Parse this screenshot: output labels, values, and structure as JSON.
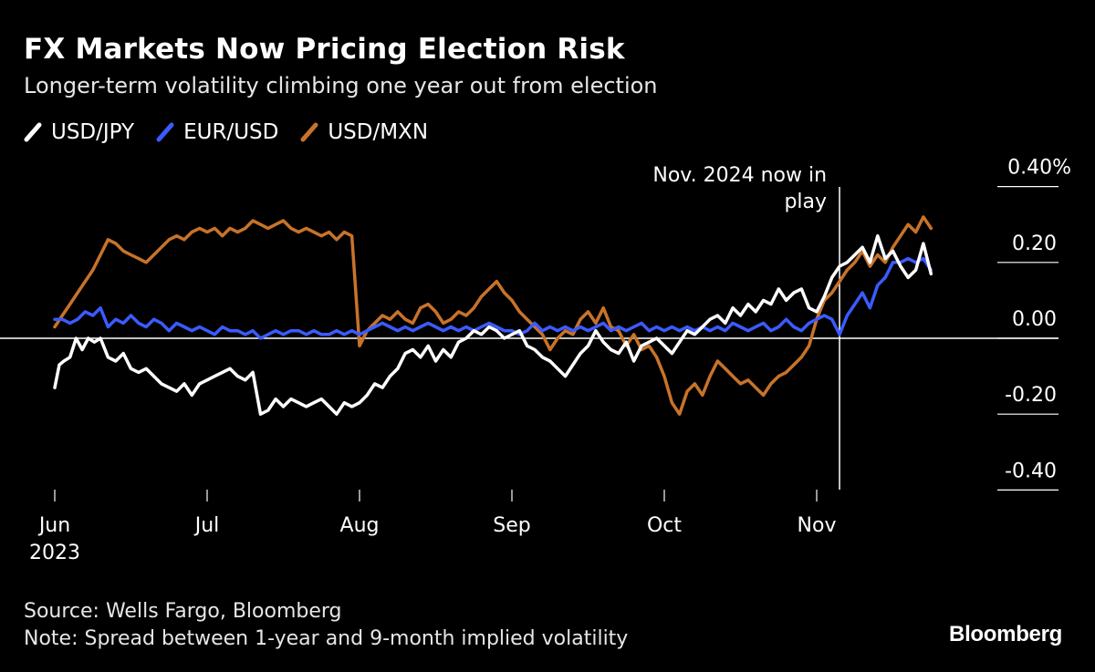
{
  "header": {
    "title": "FX Markets Now Pricing Election Risk",
    "subtitle": "Longer-term volatility climbing one year out from election"
  },
  "footer": {
    "source": "Source: Wells Fargo, Bloomberg",
    "note": "Note: Spread between 1-year and 9-month implied volatility",
    "brand": "Bloomberg"
  },
  "chart_data": {
    "type": "line",
    "title": "FX Markets Now Pricing Election Risk",
    "subtitle": "Longer-term volatility climbing one year out from election",
    "xlabel": "",
    "ylabel": "",
    "xlim": [
      0,
      5.9
    ],
    "ylim": [
      -0.42,
      0.43
    ],
    "x_ticks": [
      {
        "x": 0,
        "label": "Jun",
        "sublabel": "2023"
      },
      {
        "x": 1,
        "label": "Jul"
      },
      {
        "x": 2,
        "label": "Aug"
      },
      {
        "x": 3,
        "label": "Sep"
      },
      {
        "x": 4,
        "label": "Oct"
      },
      {
        "x": 5,
        "label": "Nov"
      }
    ],
    "y_ticks": [
      {
        "value": 0.4,
        "label": "0.40%"
      },
      {
        "value": 0.2,
        "label": "0.20"
      },
      {
        "value": 0.0,
        "label": "0.00"
      },
      {
        "value": -0.2,
        "label": "-0.20"
      },
      {
        "value": -0.4,
        "label": "-0.40"
      }
    ],
    "legend_position": "top-left",
    "annotation": {
      "x": 5.15,
      "text_lines": [
        "Nov. 2024 now in",
        "play"
      ]
    },
    "series": [
      {
        "name": "USD/JPY",
        "color": "#ffffff",
        "x": [
          0,
          0.03,
          0.06,
          0.1,
          0.14,
          0.18,
          0.22,
          0.26,
          0.3,
          0.35,
          0.4,
          0.45,
          0.5,
          0.55,
          0.6,
          0.65,
          0.7,
          0.75,
          0.8,
          0.85,
          0.9,
          0.95,
          1.0,
          1.05,
          1.1,
          1.15,
          1.2,
          1.25,
          1.3,
          1.35,
          1.4,
          1.45,
          1.5,
          1.55,
          1.6,
          1.65,
          1.7,
          1.75,
          1.8,
          1.85,
          1.9,
          1.95,
          2.0,
          2.05,
          2.1,
          2.15,
          2.2,
          2.25,
          2.3,
          2.35,
          2.4,
          2.45,
          2.5,
          2.55,
          2.6,
          2.65,
          2.7,
          2.75,
          2.8,
          2.85,
          2.9,
          2.95,
          3.0,
          3.05,
          3.1,
          3.15,
          3.2,
          3.25,
          3.3,
          3.35,
          3.4,
          3.45,
          3.5,
          3.55,
          3.6,
          3.65,
          3.7,
          3.75,
          3.8,
          3.85,
          3.9,
          3.95,
          4.0,
          4.05,
          4.1,
          4.15,
          4.2,
          4.25,
          4.3,
          4.35,
          4.4,
          4.45,
          4.5,
          4.55,
          4.6,
          4.65,
          4.7,
          4.75,
          4.8,
          4.85,
          4.9,
          4.95,
          5.0,
          5.05,
          5.1,
          5.15,
          5.2,
          5.25,
          5.3,
          5.35,
          5.4,
          5.45,
          5.5,
          5.55,
          5.6,
          5.65,
          5.7,
          5.75
        ],
        "values": [
          -0.13,
          -0.07,
          -0.06,
          -0.05,
          0.0,
          -0.03,
          0.0,
          -0.01,
          0.0,
          -0.05,
          -0.06,
          -0.04,
          -0.08,
          -0.09,
          -0.08,
          -0.1,
          -0.12,
          -0.13,
          -0.14,
          -0.12,
          -0.15,
          -0.12,
          -0.11,
          -0.1,
          -0.09,
          -0.08,
          -0.1,
          -0.11,
          -0.09,
          -0.2,
          -0.19,
          -0.16,
          -0.18,
          -0.16,
          -0.17,
          -0.18,
          -0.17,
          -0.16,
          -0.18,
          -0.2,
          -0.17,
          -0.18,
          -0.17,
          -0.15,
          -0.12,
          -0.13,
          -0.1,
          -0.08,
          -0.04,
          -0.03,
          -0.05,
          -0.02,
          -0.06,
          -0.03,
          -0.05,
          -0.01,
          0.0,
          0.02,
          0.01,
          0.03,
          0.02,
          0.0,
          0.01,
          0.02,
          -0.02,
          -0.03,
          -0.05,
          -0.06,
          -0.08,
          -0.1,
          -0.07,
          -0.04,
          -0.02,
          0.02,
          -0.01,
          -0.03,
          -0.04,
          -0.01,
          -0.06,
          -0.02,
          -0.01,
          0.0,
          -0.02,
          -0.04,
          -0.01,
          0.02,
          0.01,
          0.03,
          0.05,
          0.06,
          0.04,
          0.08,
          0.06,
          0.09,
          0.07,
          0.1,
          0.09,
          0.13,
          0.1,
          0.12,
          0.13,
          0.08,
          0.07,
          0.11,
          0.16,
          0.19,
          0.2,
          0.22,
          0.24,
          0.2,
          0.27,
          0.21,
          0.23,
          0.19,
          0.16,
          0.18,
          0.25,
          0.17
        ]
      },
      {
        "name": "EUR/USD",
        "color": "#3b5bff",
        "x": [
          0,
          0.05,
          0.1,
          0.15,
          0.2,
          0.25,
          0.3,
          0.35,
          0.4,
          0.45,
          0.5,
          0.55,
          0.6,
          0.65,
          0.7,
          0.75,
          0.8,
          0.85,
          0.9,
          0.95,
          1.0,
          1.05,
          1.1,
          1.15,
          1.2,
          1.25,
          1.3,
          1.35,
          1.4,
          1.45,
          1.5,
          1.55,
          1.6,
          1.65,
          1.7,
          1.75,
          1.8,
          1.85,
          1.9,
          1.95,
          2.0,
          2.05,
          2.1,
          2.15,
          2.2,
          2.25,
          2.3,
          2.35,
          2.4,
          2.45,
          2.5,
          2.55,
          2.6,
          2.65,
          2.7,
          2.75,
          2.8,
          2.85,
          2.9,
          2.95,
          3.0,
          3.05,
          3.1,
          3.15,
          3.2,
          3.25,
          3.3,
          3.35,
          3.4,
          3.45,
          3.5,
          3.55,
          3.6,
          3.65,
          3.7,
          3.75,
          3.8,
          3.85,
          3.9,
          3.95,
          4.0,
          4.05,
          4.1,
          4.15,
          4.2,
          4.25,
          4.3,
          4.35,
          4.4,
          4.45,
          4.5,
          4.55,
          4.6,
          4.65,
          4.7,
          4.75,
          4.8,
          4.85,
          4.9,
          4.95,
          5.0,
          5.05,
          5.1,
          5.15,
          5.2,
          5.25,
          5.3,
          5.35,
          5.4,
          5.45,
          5.5,
          5.55,
          5.6,
          5.65,
          5.7,
          5.75
        ],
        "values": [
          0.05,
          0.05,
          0.04,
          0.05,
          0.07,
          0.06,
          0.08,
          0.03,
          0.05,
          0.04,
          0.06,
          0.04,
          0.03,
          0.05,
          0.04,
          0.02,
          0.04,
          0.03,
          0.02,
          0.03,
          0.02,
          0.01,
          0.03,
          0.02,
          0.02,
          0.01,
          0.02,
          0.0,
          0.01,
          0.02,
          0.01,
          0.02,
          0.02,
          0.01,
          0.02,
          0.01,
          0.01,
          0.02,
          0.01,
          0.02,
          0.01,
          0.02,
          0.03,
          0.04,
          0.03,
          0.02,
          0.03,
          0.02,
          0.03,
          0.04,
          0.03,
          0.02,
          0.03,
          0.02,
          0.03,
          0.02,
          0.03,
          0.04,
          0.03,
          0.02,
          0.02,
          0.01,
          0.02,
          0.04,
          0.02,
          0.03,
          0.02,
          0.03,
          0.02,
          0.03,
          0.02,
          0.03,
          0.04,
          0.02,
          0.03,
          0.02,
          0.03,
          0.04,
          0.02,
          0.03,
          0.02,
          0.03,
          0.02,
          0.03,
          0.02,
          0.03,
          0.02,
          0.03,
          0.02,
          0.04,
          0.03,
          0.02,
          0.03,
          0.04,
          0.02,
          0.03,
          0.05,
          0.03,
          0.02,
          0.04,
          0.05,
          0.06,
          0.05,
          0.01,
          0.06,
          0.09,
          0.12,
          0.08,
          0.14,
          0.16,
          0.2,
          0.2,
          0.21,
          0.2,
          0.21,
          0.18
        ]
      },
      {
        "name": "USD/MXN",
        "color": "#c8732a",
        "x": [
          0,
          0.05,
          0.1,
          0.15,
          0.2,
          0.25,
          0.3,
          0.35,
          0.4,
          0.45,
          0.5,
          0.55,
          0.6,
          0.65,
          0.7,
          0.75,
          0.8,
          0.85,
          0.9,
          0.95,
          1.0,
          1.05,
          1.1,
          1.15,
          1.2,
          1.25,
          1.3,
          1.35,
          1.4,
          1.45,
          1.5,
          1.55,
          1.6,
          1.65,
          1.7,
          1.75,
          1.8,
          1.85,
          1.9,
          1.95,
          2.0,
          2.05,
          2.1,
          2.15,
          2.2,
          2.25,
          2.3,
          2.35,
          2.4,
          2.45,
          2.5,
          2.55,
          2.6,
          2.65,
          2.7,
          2.75,
          2.8,
          2.85,
          2.9,
          2.95,
          3.0,
          3.05,
          3.1,
          3.15,
          3.2,
          3.25,
          3.3,
          3.35,
          3.4,
          3.45,
          3.5,
          3.55,
          3.6,
          3.65,
          3.7,
          3.75,
          3.8,
          3.85,
          3.9,
          3.95,
          4.0,
          4.05,
          4.1,
          4.15,
          4.2,
          4.25,
          4.3,
          4.35,
          4.4,
          4.45,
          4.5,
          4.55,
          4.6,
          4.65,
          4.7,
          4.75,
          4.8,
          4.85,
          4.9,
          4.95,
          5.0,
          5.05,
          5.1,
          5.15,
          5.2,
          5.25,
          5.3,
          5.35,
          5.4,
          5.45,
          5.5,
          5.55,
          5.6,
          5.65,
          5.7,
          5.75
        ],
        "values": [
          0.03,
          0.06,
          0.09,
          0.12,
          0.15,
          0.18,
          0.22,
          0.26,
          0.25,
          0.23,
          0.22,
          0.21,
          0.2,
          0.22,
          0.24,
          0.26,
          0.27,
          0.26,
          0.28,
          0.29,
          0.28,
          0.29,
          0.27,
          0.29,
          0.28,
          0.29,
          0.31,
          0.3,
          0.29,
          0.3,
          0.31,
          0.29,
          0.28,
          0.29,
          0.28,
          0.27,
          0.28,
          0.26,
          0.28,
          0.27,
          -0.02,
          0.02,
          0.04,
          0.06,
          0.05,
          0.07,
          0.05,
          0.04,
          0.08,
          0.09,
          0.07,
          0.04,
          0.05,
          0.07,
          0.06,
          0.08,
          0.11,
          0.13,
          0.15,
          0.12,
          0.1,
          0.07,
          0.05,
          0.03,
          0.01,
          -0.03,
          0.0,
          0.02,
          0.01,
          0.05,
          0.07,
          0.04,
          0.08,
          0.03,
          0.02,
          -0.02,
          0.01,
          -0.03,
          -0.02,
          -0.05,
          -0.1,
          -0.17,
          -0.2,
          -0.14,
          -0.12,
          -0.15,
          -0.1,
          -0.06,
          -0.08,
          -0.1,
          -0.12,
          -0.11,
          -0.13,
          -0.15,
          -0.12,
          -0.1,
          -0.09,
          -0.07,
          -0.05,
          -0.02,
          0.05,
          0.1,
          0.12,
          0.15,
          0.18,
          0.2,
          0.23,
          0.19,
          0.22,
          0.2,
          0.24,
          0.27,
          0.3,
          0.28,
          0.32,
          0.29
        ]
      }
    ]
  }
}
